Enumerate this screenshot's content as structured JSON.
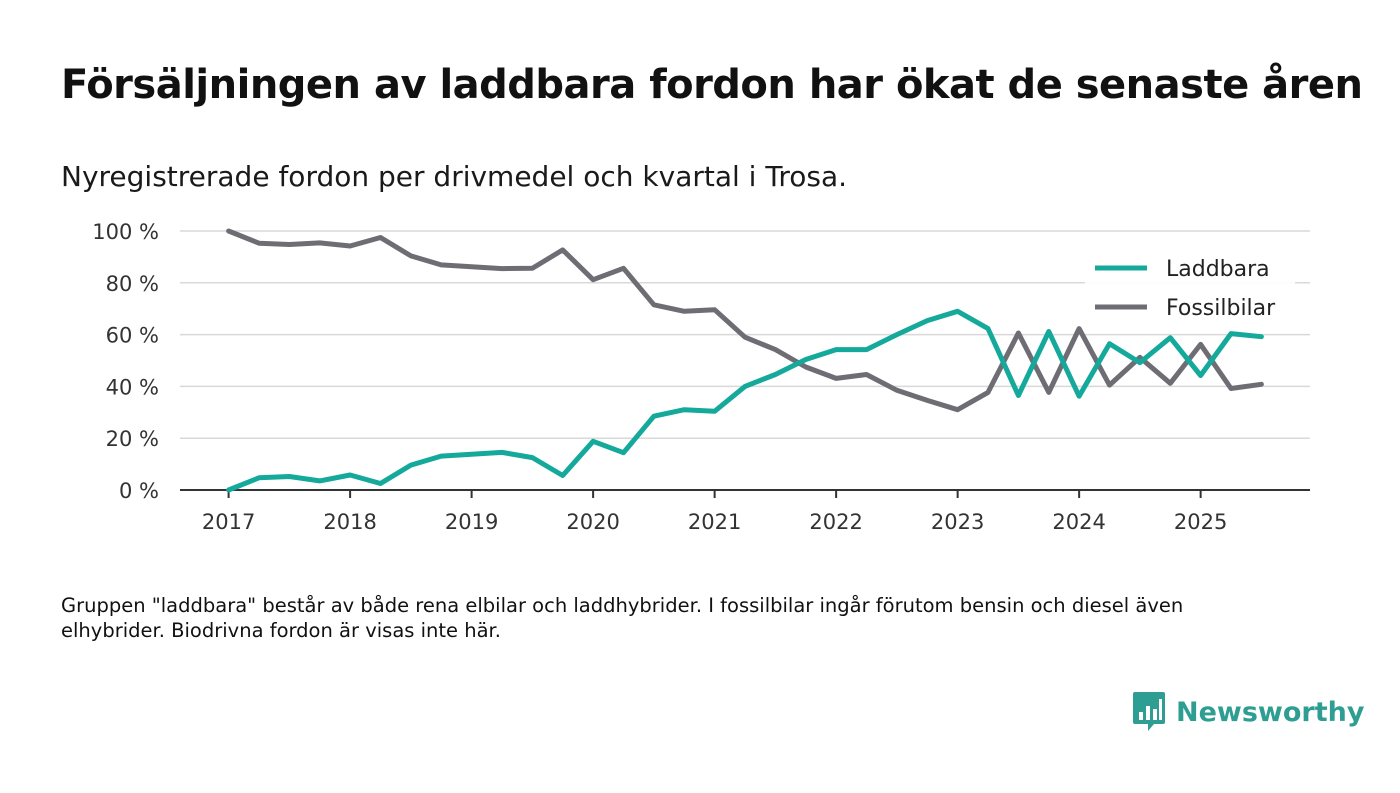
{
  "title": "Försäljningen av laddbara fordon har ökat de senaste åren",
  "subtitle": "Nyregistrerade fordon per drivmedel och kvartal i Trosa.",
  "note": "Gruppen \"laddbara\" består av både rena elbilar och laddhybrider. I fossilbilar ingår förutom bensin och diesel även elhybrider. Biodrivna fordon är visas inte här.",
  "brand": {
    "name": "Newsworthy",
    "color": "#2f9e92"
  },
  "chart_data": {
    "type": "line",
    "title": "Försäljningen av laddbara fordon har ökat de senaste åren",
    "xlabel": "",
    "ylabel": "",
    "x": [
      2017.0,
      2017.25,
      2017.5,
      2017.75,
      2018.0,
      2018.25,
      2018.5,
      2018.75,
      2019.0,
      2019.25,
      2019.5,
      2019.75,
      2020.0,
      2020.25,
      2020.5,
      2020.75,
      2021.0,
      2021.25,
      2021.5,
      2021.75,
      2022.0,
      2022.25,
      2022.5,
      2022.75,
      2023.0,
      2023.25,
      2023.5,
      2023.75,
      2024.0,
      2024.25,
      2024.5,
      2024.75,
      2025.0,
      2025.25,
      2025.5
    ],
    "xlim": [
      2016.6,
      2025.9
    ],
    "ylim": [
      0,
      100
    ],
    "x_ticks": [
      2017,
      2018,
      2019,
      2020,
      2021,
      2022,
      2023,
      2024,
      2025
    ],
    "x_tick_labels": [
      "2017",
      "2018",
      "2019",
      "2020",
      "2021",
      "2022",
      "2023",
      "2024",
      "2025"
    ],
    "y_ticks": [
      0,
      20,
      40,
      60,
      80,
      100
    ],
    "y_tick_labels": [
      "0 %",
      "20 %",
      "40 %",
      "60 %",
      "80 %",
      "100 %"
    ],
    "grid": true,
    "legend_position": "top-right",
    "series": [
      {
        "name": "Laddbara",
        "color": "#14a99b",
        "values": [
          0,
          4.7,
          5.2,
          3.5,
          5.8,
          2.5,
          9.6,
          13.1,
          13.8,
          14.5,
          12.5,
          5.6,
          18.8,
          14.4,
          28.5,
          31.0,
          30.4,
          40.0,
          44.6,
          50.4,
          54.2,
          54.2,
          60.0,
          65.4,
          69.0,
          62.3,
          36.5,
          61.2,
          36.2,
          56.5,
          49.2,
          58.8,
          44.2,
          60.4,
          59.2
        ]
      },
      {
        "name": "Fossilbilar",
        "color": "#6e6d74",
        "values": [
          100,
          95.3,
          94.8,
          95.4,
          94.2,
          97.5,
          90.4,
          86.9,
          86.2,
          85.5,
          85.6,
          92.7,
          81.2,
          85.6,
          71.5,
          69.0,
          69.6,
          59.0,
          54.2,
          47.5,
          43.1,
          44.6,
          38.5,
          34.6,
          31.0,
          37.7,
          60.6,
          37.7,
          62.3,
          40.5,
          51.2,
          41.2,
          56.2,
          39.2,
          40.8
        ]
      }
    ]
  }
}
